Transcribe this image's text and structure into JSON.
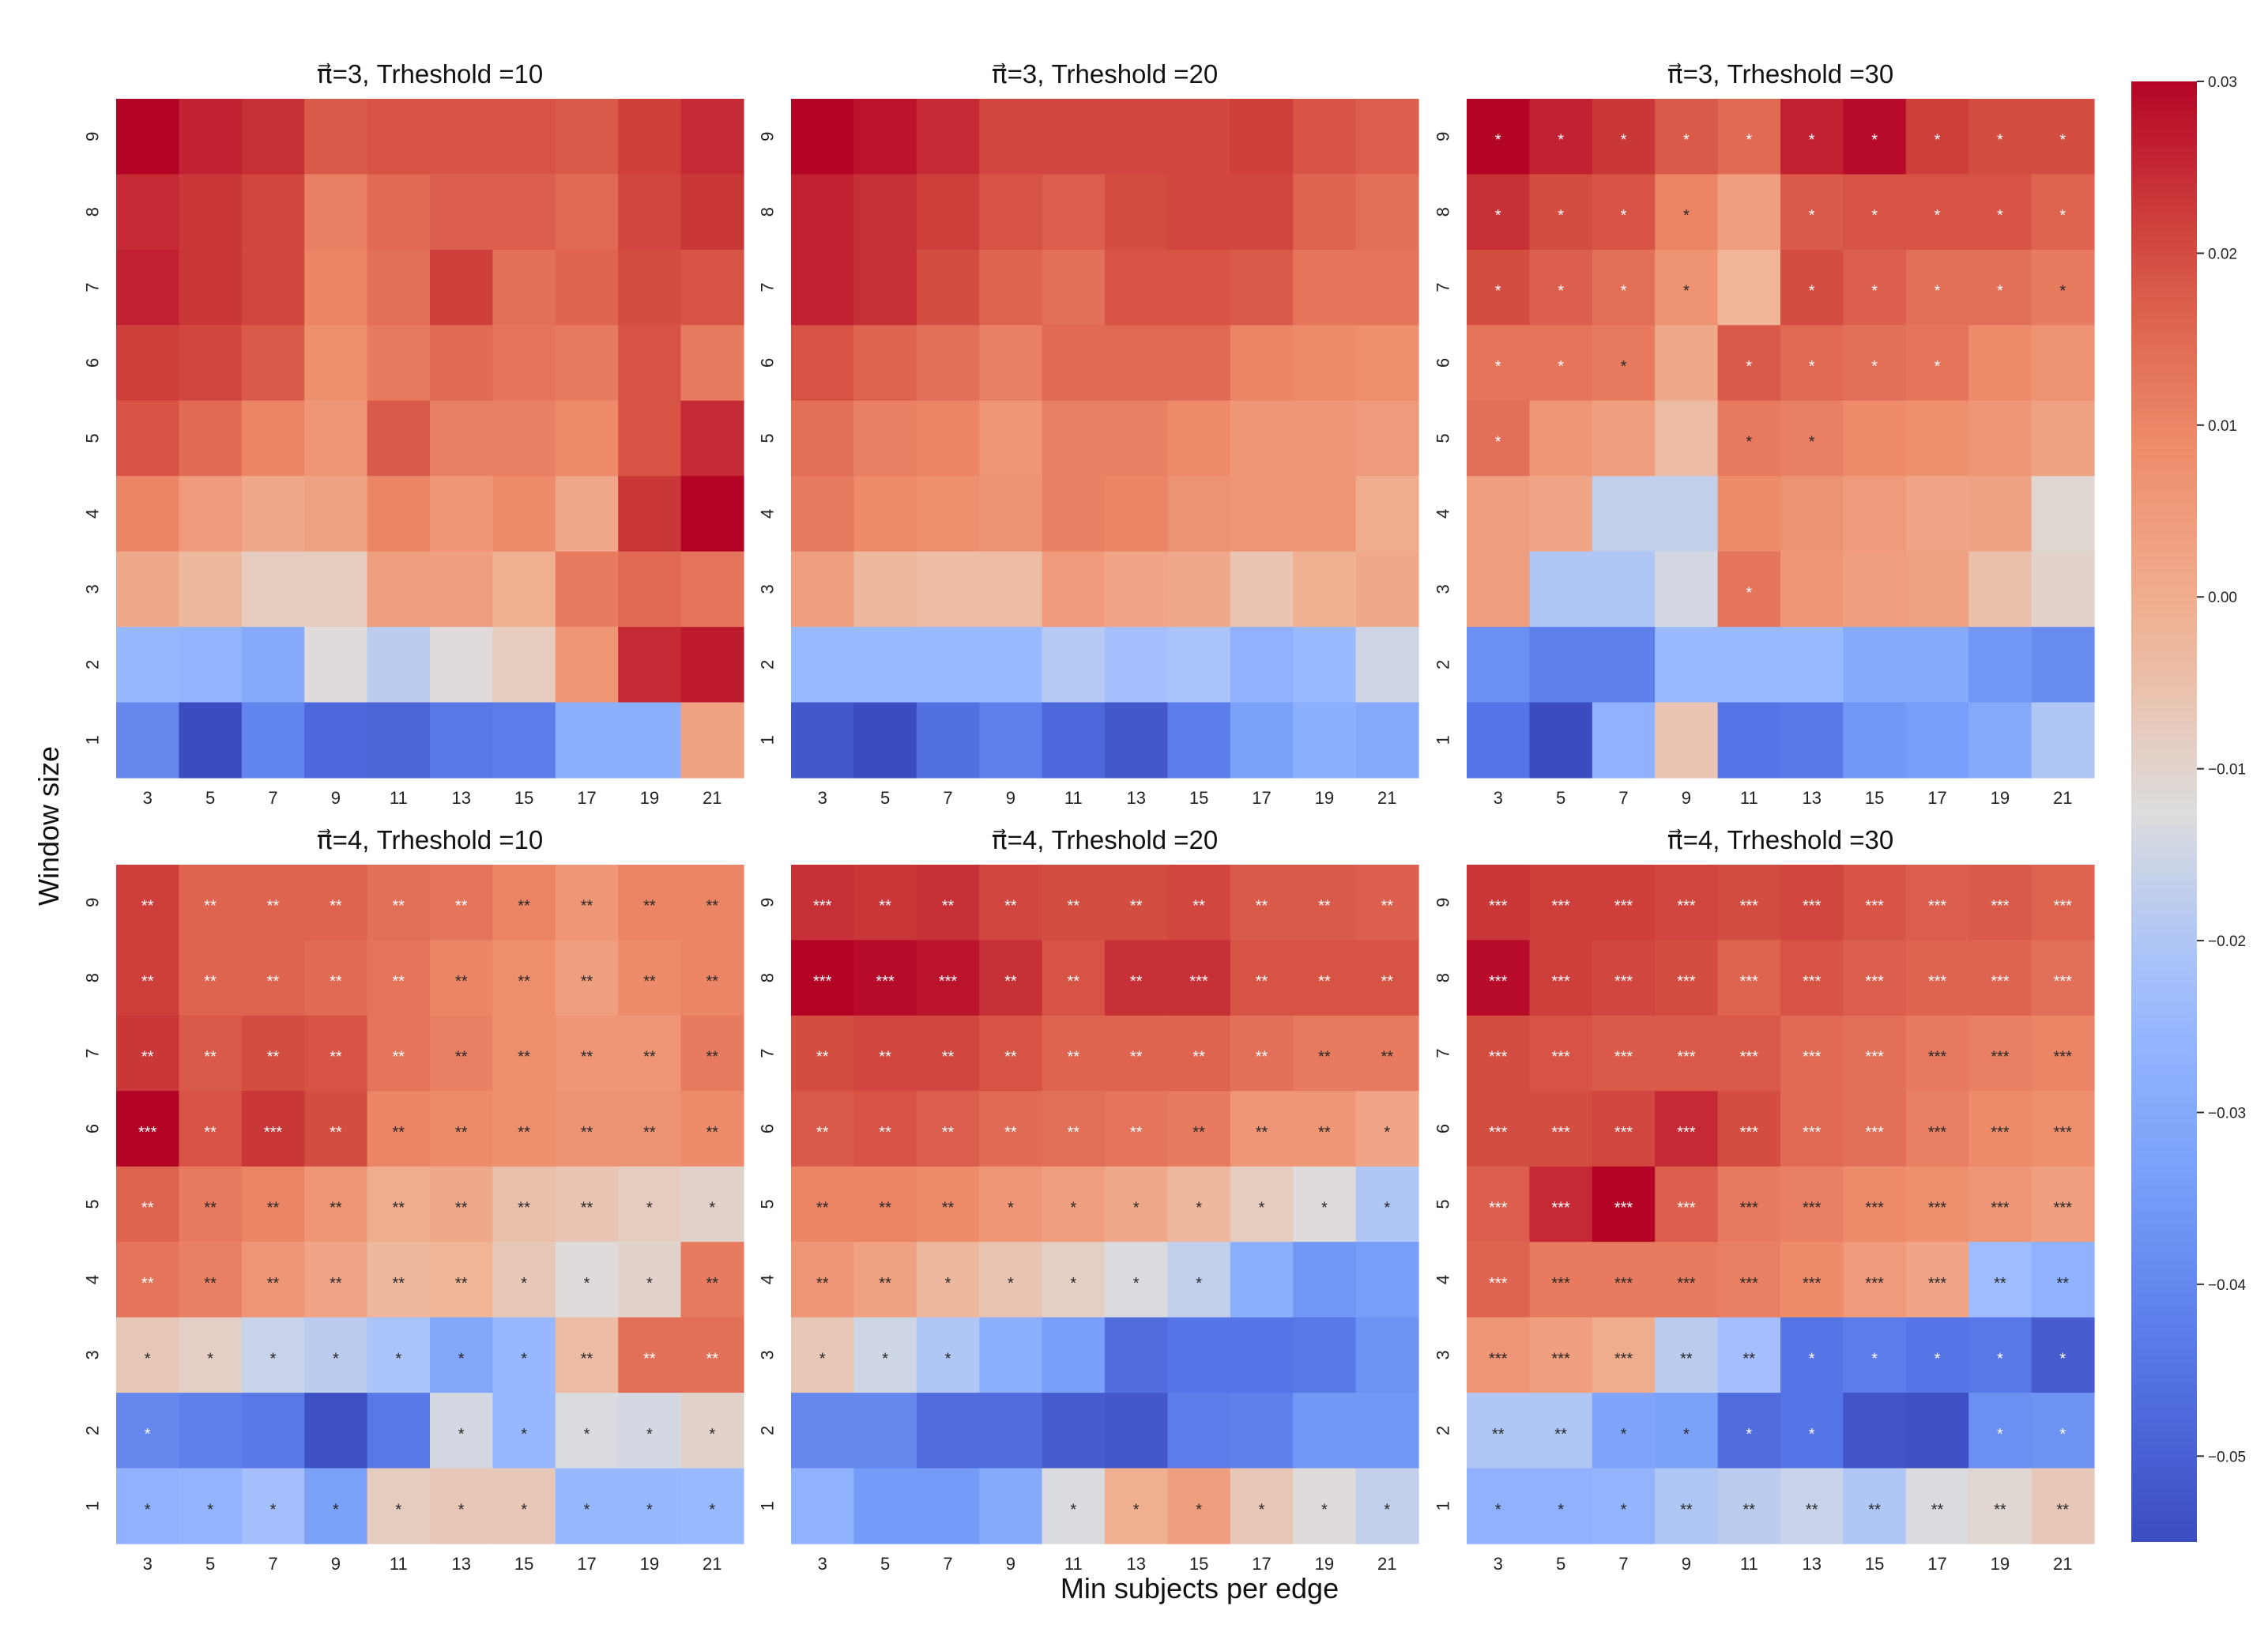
{
  "figure": {
    "ylabel": "Window size",
    "xlabel": "Min subjects per edge",
    "colormap": "coolwarm",
    "vmin": -0.055,
    "vmax": 0.03,
    "colorbar_ticks": [
      0.03,
      0.02,
      0.01,
      0.0,
      -0.01,
      -0.02,
      -0.03,
      -0.04,
      -0.05
    ],
    "colorbar_tick_labels": [
      "0.03",
      "0.02",
      "0.01",
      "0.00",
      "−0.01",
      "−0.02",
      "−0.03",
      "−0.04",
      "−0.05"
    ]
  },
  "chart_data": [
    {
      "type": "heatmap",
      "title": "π⃗=3, Trheshold =10",
      "x": [
        3,
        5,
        7,
        9,
        11,
        13,
        15,
        17,
        19,
        21
      ],
      "y": [
        9,
        8,
        7,
        6,
        5,
        4,
        3,
        2,
        1
      ],
      "values": [
        [
          0.03,
          0.026,
          0.024,
          0.018,
          0.019,
          0.019,
          0.019,
          0.018,
          0.022,
          0.025
        ],
        [
          0.025,
          0.023,
          0.021,
          0.011,
          0.015,
          0.017,
          0.017,
          0.015,
          0.021,
          0.023
        ],
        [
          0.026,
          0.023,
          0.021,
          0.01,
          0.014,
          0.022,
          0.014,
          0.016,
          0.02,
          0.019
        ],
        [
          0.022,
          0.021,
          0.018,
          0.008,
          0.012,
          0.015,
          0.013,
          0.012,
          0.019,
          0.012
        ],
        [
          0.019,
          0.015,
          0.01,
          0.006,
          0.018,
          0.011,
          0.011,
          0.009,
          0.019,
          0.025
        ],
        [
          0.01,
          0.005,
          0.001,
          0.003,
          0.01,
          0.006,
          0.009,
          0.001,
          0.023,
          0.03
        ],
        [
          0.001,
          -0.003,
          -0.008,
          -0.008,
          0.004,
          0.004,
          -0.001,
          0.012,
          0.015,
          0.013
        ],
        [
          -0.025,
          -0.026,
          -0.03,
          -0.012,
          -0.018,
          -0.012,
          -0.008,
          0.006,
          0.025,
          0.027
        ],
        [
          -0.04,
          -0.055,
          -0.041,
          -0.048,
          -0.049,
          -0.044,
          -0.043,
          -0.028,
          -0.028,
          0.003
        ]
      ],
      "annotations": []
    },
    {
      "type": "heatmap",
      "title": "π⃗=3, Trheshold =20",
      "x": [
        3,
        5,
        7,
        9,
        11,
        13,
        15,
        17,
        19,
        21
      ],
      "y": [
        9,
        8,
        7,
        6,
        5,
        4,
        3,
        2,
        1
      ],
      "values": [
        [
          0.03,
          0.028,
          0.025,
          0.021,
          0.021,
          0.021,
          0.021,
          0.022,
          0.019,
          0.017
        ],
        [
          0.026,
          0.024,
          0.022,
          0.019,
          0.017,
          0.02,
          0.021,
          0.021,
          0.016,
          0.014
        ],
        [
          0.026,
          0.024,
          0.02,
          0.016,
          0.014,
          0.019,
          0.019,
          0.018,
          0.013,
          0.013
        ],
        [
          0.019,
          0.016,
          0.014,
          0.011,
          0.015,
          0.015,
          0.015,
          0.01,
          0.009,
          0.008
        ],
        [
          0.014,
          0.011,
          0.01,
          0.006,
          0.011,
          0.011,
          0.009,
          0.006,
          0.006,
          0.005
        ],
        [
          0.012,
          0.009,
          0.008,
          0.007,
          0.011,
          0.01,
          0.007,
          0.006,
          0.006,
          0.0
        ],
        [
          0.004,
          -0.003,
          -0.004,
          -0.004,
          0.005,
          0.002,
          0.001,
          -0.006,
          -0.001,
          0.001
        ],
        [
          -0.024,
          -0.024,
          -0.024,
          -0.024,
          -0.019,
          -0.022,
          -0.021,
          -0.027,
          -0.024,
          -0.015
        ],
        [
          -0.052,
          -0.057,
          -0.046,
          -0.042,
          -0.048,
          -0.052,
          -0.043,
          -0.033,
          -0.028,
          -0.03
        ]
      ],
      "annotations": []
    },
    {
      "type": "heatmap",
      "title": "π⃗=3, Trheshold =30",
      "x": [
        3,
        5,
        7,
        9,
        11,
        13,
        15,
        17,
        19,
        21
      ],
      "y": [
        9,
        8,
        7,
        6,
        5,
        4,
        3,
        2,
        1
      ],
      "values": [
        [
          0.031,
          0.026,
          0.023,
          0.018,
          0.015,
          0.026,
          0.029,
          0.022,
          0.02,
          0.02
        ],
        [
          0.024,
          0.02,
          0.019,
          0.01,
          0.004,
          0.018,
          0.019,
          0.019,
          0.019,
          0.016
        ],
        [
          0.02,
          0.017,
          0.014,
          0.007,
          -0.002,
          0.02,
          0.017,
          0.014,
          0.014,
          0.012
        ],
        [
          0.013,
          0.013,
          0.012,
          0.001,
          0.018,
          0.015,
          0.014,
          0.013,
          0.009,
          0.007
        ],
        [
          0.014,
          0.006,
          0.004,
          -0.004,
          0.012,
          0.011,
          0.009,
          0.008,
          0.006,
          0.003
        ],
        [
          0.004,
          0.002,
          -0.017,
          -0.017,
          0.009,
          0.007,
          0.005,
          0.002,
          0.003,
          -0.011
        ],
        [
          0.004,
          -0.02,
          -0.02,
          -0.014,
          0.013,
          0.006,
          0.004,
          0.003,
          -0.005,
          -0.01
        ],
        [
          -0.038,
          -0.042,
          -0.042,
          -0.024,
          -0.024,
          -0.024,
          -0.03,
          -0.03,
          -0.036,
          -0.039
        ],
        [
          -0.045,
          -0.055,
          -0.027,
          -0.006,
          -0.045,
          -0.044,
          -0.036,
          -0.034,
          -0.03,
          -0.02
        ]
      ],
      "annotations": [
        [
          "*",
          "*",
          "*",
          "*",
          "*",
          "*",
          "*",
          "*",
          "*",
          "*"
        ],
        [
          "*",
          "*",
          "*",
          "*",
          "",
          "*",
          "*",
          "*",
          "*",
          "*"
        ],
        [
          "*",
          "*",
          "*",
          "*",
          "",
          "*",
          "*",
          "*",
          "*",
          "*"
        ],
        [
          "*",
          "*",
          "*",
          "",
          "*",
          "*",
          "*",
          "*",
          "",
          ""
        ],
        [
          "*",
          "",
          "",
          "",
          "*",
          "*",
          "",
          "",
          "",
          ""
        ],
        [
          "",
          "",
          "",
          "",
          "",
          "",
          "",
          "",
          "",
          ""
        ],
        [
          "",
          "",
          "",
          "",
          "*",
          "",
          "",
          "",
          "",
          ""
        ],
        [
          "",
          "",
          "",
          "",
          "",
          "",
          "",
          "",
          "",
          ""
        ],
        [
          "",
          "",
          "",
          "",
          "",
          "",
          "",
          "",
          "",
          ""
        ]
      ]
    },
    {
      "type": "heatmap",
      "title": "π⃗=4, Trheshold =10",
      "x": [
        3,
        5,
        7,
        9,
        11,
        13,
        15,
        17,
        19,
        21
      ],
      "y": [
        9,
        8,
        7,
        6,
        5,
        4,
        3,
        2,
        1
      ],
      "values": [
        [
          0.022,
          0.016,
          0.016,
          0.016,
          0.014,
          0.013,
          0.01,
          0.006,
          0.01,
          0.01
        ],
        [
          0.022,
          0.016,
          0.016,
          0.015,
          0.013,
          0.01,
          0.008,
          0.004,
          0.009,
          0.01
        ],
        [
          0.023,
          0.018,
          0.02,
          0.019,
          0.013,
          0.011,
          0.008,
          0.006,
          0.006,
          0.012
        ],
        [
          0.032,
          0.019,
          0.023,
          0.02,
          0.01,
          0.009,
          0.008,
          0.007,
          0.007,
          0.009
        ],
        [
          0.016,
          0.012,
          0.01,
          0.006,
          0.0,
          0.001,
          -0.005,
          -0.006,
          -0.008,
          -0.01
        ],
        [
          0.013,
          0.011,
          0.006,
          0.002,
          -0.003,
          -0.002,
          -0.007,
          -0.012,
          -0.01,
          0.012
        ],
        [
          -0.007,
          -0.009,
          -0.016,
          -0.018,
          -0.021,
          -0.031,
          -0.025,
          -0.004,
          0.014,
          0.014
        ],
        [
          -0.04,
          -0.042,
          -0.044,
          -0.054,
          -0.044,
          -0.014,
          -0.025,
          -0.013,
          -0.014,
          -0.01
        ],
        [
          -0.027,
          -0.026,
          -0.022,
          -0.033,
          -0.008,
          -0.007,
          -0.007,
          -0.025,
          -0.025,
          -0.024
        ]
      ],
      "annotations": [
        [
          "**",
          "**",
          "**",
          "**",
          "**",
          "**",
          "**",
          "**",
          "**",
          "**"
        ],
        [
          "**",
          "**",
          "**",
          "**",
          "**",
          "**",
          "**",
          "**",
          "**",
          "**"
        ],
        [
          "**",
          "**",
          "**",
          "**",
          "**",
          "**",
          "**",
          "**",
          "**",
          "**"
        ],
        [
          "***",
          "**",
          "***",
          "**",
          "**",
          "**",
          "**",
          "**",
          "**",
          "**"
        ],
        [
          "**",
          "**",
          "**",
          "**",
          "**",
          "**",
          "**",
          "**",
          "*",
          "*"
        ],
        [
          "**",
          "**",
          "**",
          "**",
          "**",
          "**",
          "*",
          "*",
          "*",
          "**"
        ],
        [
          "*",
          "*",
          "*",
          "*",
          "*",
          "*",
          "*",
          "**",
          "**",
          "**"
        ],
        [
          "*",
          "",
          "",
          "",
          "",
          "*",
          "*",
          "*",
          "*",
          "*"
        ],
        [
          "*",
          "*",
          "*",
          "*",
          "*",
          "*",
          "*",
          "*",
          "*",
          "*"
        ]
      ]
    },
    {
      "type": "heatmap",
      "title": "π⃗=4, Trheshold =20",
      "x": [
        3,
        5,
        7,
        9,
        11,
        13,
        15,
        17,
        19,
        21
      ],
      "y": [
        9,
        8,
        7,
        6,
        5,
        4,
        3,
        2,
        1
      ],
      "values": [
        [
          0.024,
          0.023,
          0.024,
          0.021,
          0.02,
          0.02,
          0.021,
          0.018,
          0.018,
          0.017
        ],
        [
          0.031,
          0.029,
          0.028,
          0.024,
          0.019,
          0.024,
          0.024,
          0.019,
          0.019,
          0.019
        ],
        [
          0.02,
          0.021,
          0.021,
          0.019,
          0.016,
          0.016,
          0.016,
          0.014,
          0.012,
          0.012
        ],
        [
          0.018,
          0.019,
          0.017,
          0.015,
          0.014,
          0.013,
          0.012,
          0.006,
          0.006,
          0.002
        ],
        [
          0.01,
          0.01,
          0.009,
          0.006,
          0.004,
          0.001,
          -0.003,
          -0.008,
          -0.012,
          -0.02
        ],
        [
          0.006,
          0.003,
          -0.003,
          -0.006,
          -0.009,
          -0.013,
          -0.017,
          -0.028,
          -0.036,
          -0.034
        ],
        [
          -0.007,
          -0.015,
          -0.02,
          -0.028,
          -0.034,
          -0.047,
          -0.045,
          -0.045,
          -0.044,
          -0.037
        ],
        [
          -0.04,
          -0.04,
          -0.047,
          -0.047,
          -0.051,
          -0.052,
          -0.043,
          -0.042,
          -0.036,
          -0.036
        ],
        [
          -0.027,
          -0.035,
          -0.035,
          -0.03,
          -0.013,
          -0.001,
          0.004,
          -0.007,
          -0.012,
          -0.017
        ]
      ],
      "annotations": [
        [
          "***",
          "**",
          "**",
          "**",
          "**",
          "**",
          "**",
          "**",
          "**",
          "**"
        ],
        [
          "***",
          "***",
          "***",
          "**",
          "**",
          "**",
          "***",
          "**",
          "**",
          "**"
        ],
        [
          "**",
          "**",
          "**",
          "**",
          "**",
          "**",
          "**",
          "**",
          "**",
          "**"
        ],
        [
          "**",
          "**",
          "**",
          "**",
          "**",
          "**",
          "**",
          "**",
          "**",
          "*"
        ],
        [
          "**",
          "**",
          "**",
          "*",
          "*",
          "*",
          "*",
          "*",
          "*",
          "*"
        ],
        [
          "**",
          "**",
          "*",
          "*",
          "*",
          "*",
          "*",
          "",
          "",
          ""
        ],
        [
          "*",
          "*",
          "*",
          "",
          "",
          "",
          "",
          "",
          "",
          ""
        ],
        [
          "",
          "",
          "",
          "",
          "",
          "",
          "",
          "",
          "",
          ""
        ],
        [
          "",
          "",
          "",
          "",
          "*",
          "*",
          "*",
          "*",
          "*",
          "*"
        ]
      ]
    },
    {
      "type": "heatmap",
      "title": "π⃗=4, Trheshold =30",
      "x": [
        3,
        5,
        7,
        9,
        11,
        13,
        15,
        17,
        19,
        21
      ],
      "y": [
        9,
        8,
        7,
        6,
        5,
        4,
        3,
        2,
        1
      ],
      "values": [
        [
          0.023,
          0.022,
          0.022,
          0.021,
          0.02,
          0.021,
          0.019,
          0.017,
          0.018,
          0.016
        ],
        [
          0.029,
          0.022,
          0.021,
          0.02,
          0.016,
          0.019,
          0.017,
          0.016,
          0.016,
          0.014
        ],
        [
          0.02,
          0.019,
          0.018,
          0.018,
          0.018,
          0.015,
          0.014,
          0.012,
          0.011,
          0.01
        ],
        [
          0.02,
          0.02,
          0.021,
          0.025,
          0.02,
          0.015,
          0.014,
          0.011,
          0.009,
          0.008
        ],
        [
          0.017,
          0.025,
          0.032,
          0.017,
          0.012,
          0.011,
          0.009,
          0.008,
          0.006,
          0.004
        ],
        [
          0.016,
          0.012,
          0.012,
          0.012,
          0.011,
          0.009,
          0.005,
          0.002,
          -0.023,
          -0.027
        ],
        [
          0.006,
          0.004,
          0.0,
          -0.018,
          -0.022,
          -0.045,
          -0.043,
          -0.045,
          -0.044,
          -0.051
        ],
        [
          -0.02,
          -0.02,
          -0.032,
          -0.033,
          -0.047,
          -0.045,
          -0.053,
          -0.054,
          -0.038,
          -0.037
        ],
        [
          -0.027,
          -0.027,
          -0.026,
          -0.02,
          -0.018,
          -0.016,
          -0.02,
          -0.013,
          -0.011,
          -0.007
        ]
      ],
      "annotations": [
        [
          "***",
          "***",
          "***",
          "***",
          "***",
          "***",
          "***",
          "***",
          "***",
          "***"
        ],
        [
          "***",
          "***",
          "***",
          "***",
          "***",
          "***",
          "***",
          "***",
          "***",
          "***"
        ],
        [
          "***",
          "***",
          "***",
          "***",
          "***",
          "***",
          "***",
          "***",
          "***",
          "***"
        ],
        [
          "***",
          "***",
          "***",
          "***",
          "***",
          "***",
          "***",
          "***",
          "***",
          "***"
        ],
        [
          "***",
          "***",
          "***",
          "***",
          "***",
          "***",
          "***",
          "***",
          "***",
          "***"
        ],
        [
          "***",
          "***",
          "***",
          "***",
          "***",
          "***",
          "***",
          "***",
          "**",
          "**"
        ],
        [
          "***",
          "***",
          "***",
          "**",
          "**",
          "*",
          "*",
          "*",
          "*",
          "*"
        ],
        [
          "**",
          "**",
          "*",
          "*",
          "*",
          "*",
          "",
          "",
          "*",
          "*"
        ],
        [
          "*",
          "*",
          "*",
          "**",
          "**",
          "**",
          "**",
          "**",
          "**",
          "**"
        ]
      ]
    }
  ]
}
